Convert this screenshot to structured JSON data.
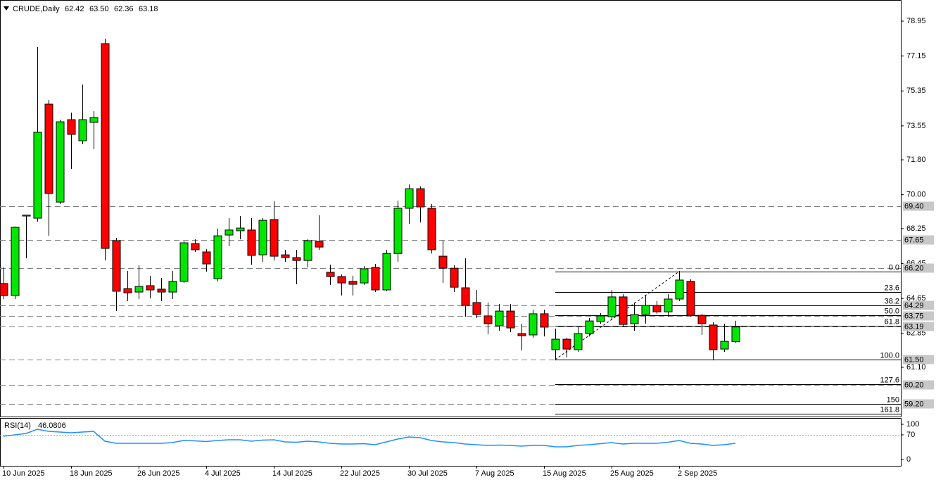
{
  "chart_data": [
    {
      "type": "candlestick",
      "title": "CRUDE,Daily",
      "header_values": [
        "62.42",
        "63.50",
        "62.36",
        "63.18"
      ],
      "categories": [
        "10 Jun 2025",
        null,
        null,
        null,
        null,
        null,
        "18 Jun 2025",
        null,
        null,
        null,
        null,
        null,
        "26 Jun 2025",
        null,
        null,
        null,
        null,
        null,
        "4 Jul 2025",
        null,
        null,
        null,
        null,
        null,
        "14 Jul 2025",
        null,
        null,
        null,
        null,
        null,
        "22 Jul 2025",
        null,
        null,
        null,
        null,
        null,
        "30 Jul 2025",
        null,
        null,
        null,
        null,
        null,
        "7 Aug 2025",
        null,
        null,
        null,
        null,
        null,
        "15 Aug 2025",
        null,
        null,
        null,
        null,
        null,
        "25 Aug 2025",
        null,
        null,
        null,
        null,
        null,
        "2 Sep 2025",
        null,
        null,
        null,
        null,
        null
      ],
      "open": [
        65.42,
        64.8,
        68.9,
        68.79,
        74.67,
        69.62,
        73.87,
        72.78,
        73.73,
        77.79,
        67.63,
        65.16,
        64.98,
        65.31,
        65.13,
        64.98,
        65.53,
        67.48,
        67.05,
        65.67,
        67.92,
        68.14,
        68.18,
        66.9,
        68.72,
        66.9,
        66.76,
        66.61,
        67.59,
        66.0,
        65.78,
        65.53,
        65.45,
        66.25,
        65.09,
        66.97,
        69.3,
        70.31,
        69.3,
        66.83,
        66.21,
        65.2,
        64.44,
        63.75,
        63.24,
        64.0,
        62.84,
        62.77,
        63.86,
        62.01,
        62.55,
        62.01,
        62.84,
        63.46,
        63.71,
        64.73,
        63.35,
        63.82,
        64.29,
        63.96,
        64.62,
        65.53,
        63.78,
        63.28,
        62.04,
        62.42
      ],
      "high": [
        66.25,
        68.35,
        68.94,
        77.61,
        74.89,
        73.87,
        74.23,
        75.68,
        74.31,
        78.04,
        67.77,
        66.07,
        66.36,
        65.82,
        65.71,
        66.07,
        67.59,
        67.7,
        67.19,
        68.25,
        68.79,
        68.9,
        68.79,
        68.79,
        69.66,
        67.16,
        67.16,
        67.7,
        68.94,
        66.39,
        65.89,
        65.82,
        66.32,
        66.43,
        67.16,
        69.7,
        70.53,
        70.42,
        69.52,
        67.63,
        66.36,
        66.72,
        65.09,
        64.44,
        64.36,
        64.36,
        63.35,
        64.07,
        64.07,
        63.09,
        62.62,
        63.17,
        63.64,
        63.89,
        65.09,
        64.87,
        64.44,
        64.8,
        64.51,
        64.87,
        66.07,
        65.64,
        63.86,
        63.42,
        63.35,
        63.5
      ],
      "low": [
        64.62,
        64.62,
        66.72,
        68.61,
        67.88,
        69.52,
        71.33,
        72.6,
        72.35,
        66.61,
        64.0,
        64.51,
        64.62,
        64.65,
        64.51,
        64.62,
        65.45,
        67.05,
        66.03,
        65.53,
        67.34,
        67.7,
        66.39,
        66.54,
        66.61,
        66.54,
        65.38,
        66.25,
        67.16,
        65.35,
        64.8,
        64.8,
        65.35,
        64.98,
        65.02,
        66.54,
        68.5,
        68.57,
        66.97,
        65.45,
        64.98,
        63.71,
        63.64,
        62.8,
        62.98,
        62.91,
        61.97,
        62.62,
        62.69,
        61.46,
        61.61,
        61.9,
        62.69,
        63.35,
        63.53,
        63.17,
        62.98,
        63.35,
        63.86,
        63.71,
        64.51,
        63.71,
        62.77,
        61.46,
        61.9,
        62.36
      ],
      "close": [
        64.8,
        68.32,
        68.95,
        73.22,
        70.06,
        73.76,
        73.11,
        73.87,
        73.98,
        67.23,
        65.02,
        64.94,
        65.27,
        65.09,
        64.98,
        65.53,
        67.52,
        67.16,
        66.43,
        67.88,
        68.18,
        68.28,
        66.87,
        68.68,
        66.83,
        66.76,
        66.61,
        67.63,
        67.3,
        65.78,
        65.45,
        65.38,
        66.18,
        65.09,
        66.97,
        69.3,
        70.31,
        69.37,
        67.16,
        66.21,
        65.23,
        64.29,
        63.82,
        63.35,
        64.0,
        63.13,
        62.73,
        63.86,
        63.17,
        62.55,
        62.04,
        62.84,
        63.49,
        63.75,
        64.73,
        63.31,
        63.82,
        64.29,
        63.96,
        64.62,
        65.6,
        63.78,
        63.35,
        62.01,
        62.44,
        63.18
      ],
      "up_color": "#00e600",
      "down_color": "#ff0000",
      "ylim": [
        58.56,
        80.04
      ],
      "yticks": [
        78.95,
        77.15,
        75.35,
        73.55,
        {
          "value": 71.8,
          "label": "71.80"
        },
        {
          "value": 70,
          "label": "70.00"
        },
        68.25,
        66.45,
        64.65,
        62.85,
        {
          "value": 61.1,
          "label": "61.10"
        }
      ],
      "levels": [
        {
          "value": 69.4,
          "label": "69.40"
        },
        {
          "value": 67.65,
          "label": "67.65"
        },
        {
          "value": 66.2,
          "label": "66.20"
        },
        {
          "value": 64.29,
          "label": "64.29"
        },
        {
          "value": 63.75,
          "label": "63.75"
        },
        {
          "value": 63.19,
          "label": "63.19"
        },
        {
          "value": 61.5,
          "label": "61.50"
        },
        {
          "value": 60.2,
          "label": "60.20"
        },
        {
          "value": 59.2,
          "label": "59.20"
        }
      ],
      "fib": {
        "high": 66.04,
        "low": 61.5,
        "low_bar": 49,
        "high_bar": 60,
        "levels": [
          {
            "value": 0,
            "label": "0.0"
          },
          23.6,
          38.2,
          {
            "value": 50,
            "label": "50.0"
          },
          61.8,
          {
            "value": 100,
            "label": "100.0"
          },
          127.6,
          150,
          161.8
        ]
      }
    },
    {
      "type": "line",
      "title": "RSI(14)",
      "values": [
        66,
        70,
        74,
        86,
        80,
        78,
        76,
        78,
        80,
        52,
        46,
        46,
        46,
        46,
        46,
        48,
        54,
        53,
        51,
        54,
        56,
        56,
        52,
        55,
        56,
        50,
        49,
        52,
        50,
        46,
        44,
        44,
        45,
        42,
        50,
        58,
        64,
        62,
        54,
        50,
        48,
        44,
        42,
        40,
        41,
        40,
        38,
        40,
        40,
        36,
        36,
        40,
        42,
        45,
        48,
        44,
        46,
        46,
        46,
        49,
        54,
        46,
        44,
        40,
        42,
        46.0806
      ],
      "color": "#1e90ff",
      "ylim": [
        -18,
        118
      ],
      "yticks": [
        100,
        70,
        0
      ],
      "levels": [
        70
      ]
    }
  ]
}
